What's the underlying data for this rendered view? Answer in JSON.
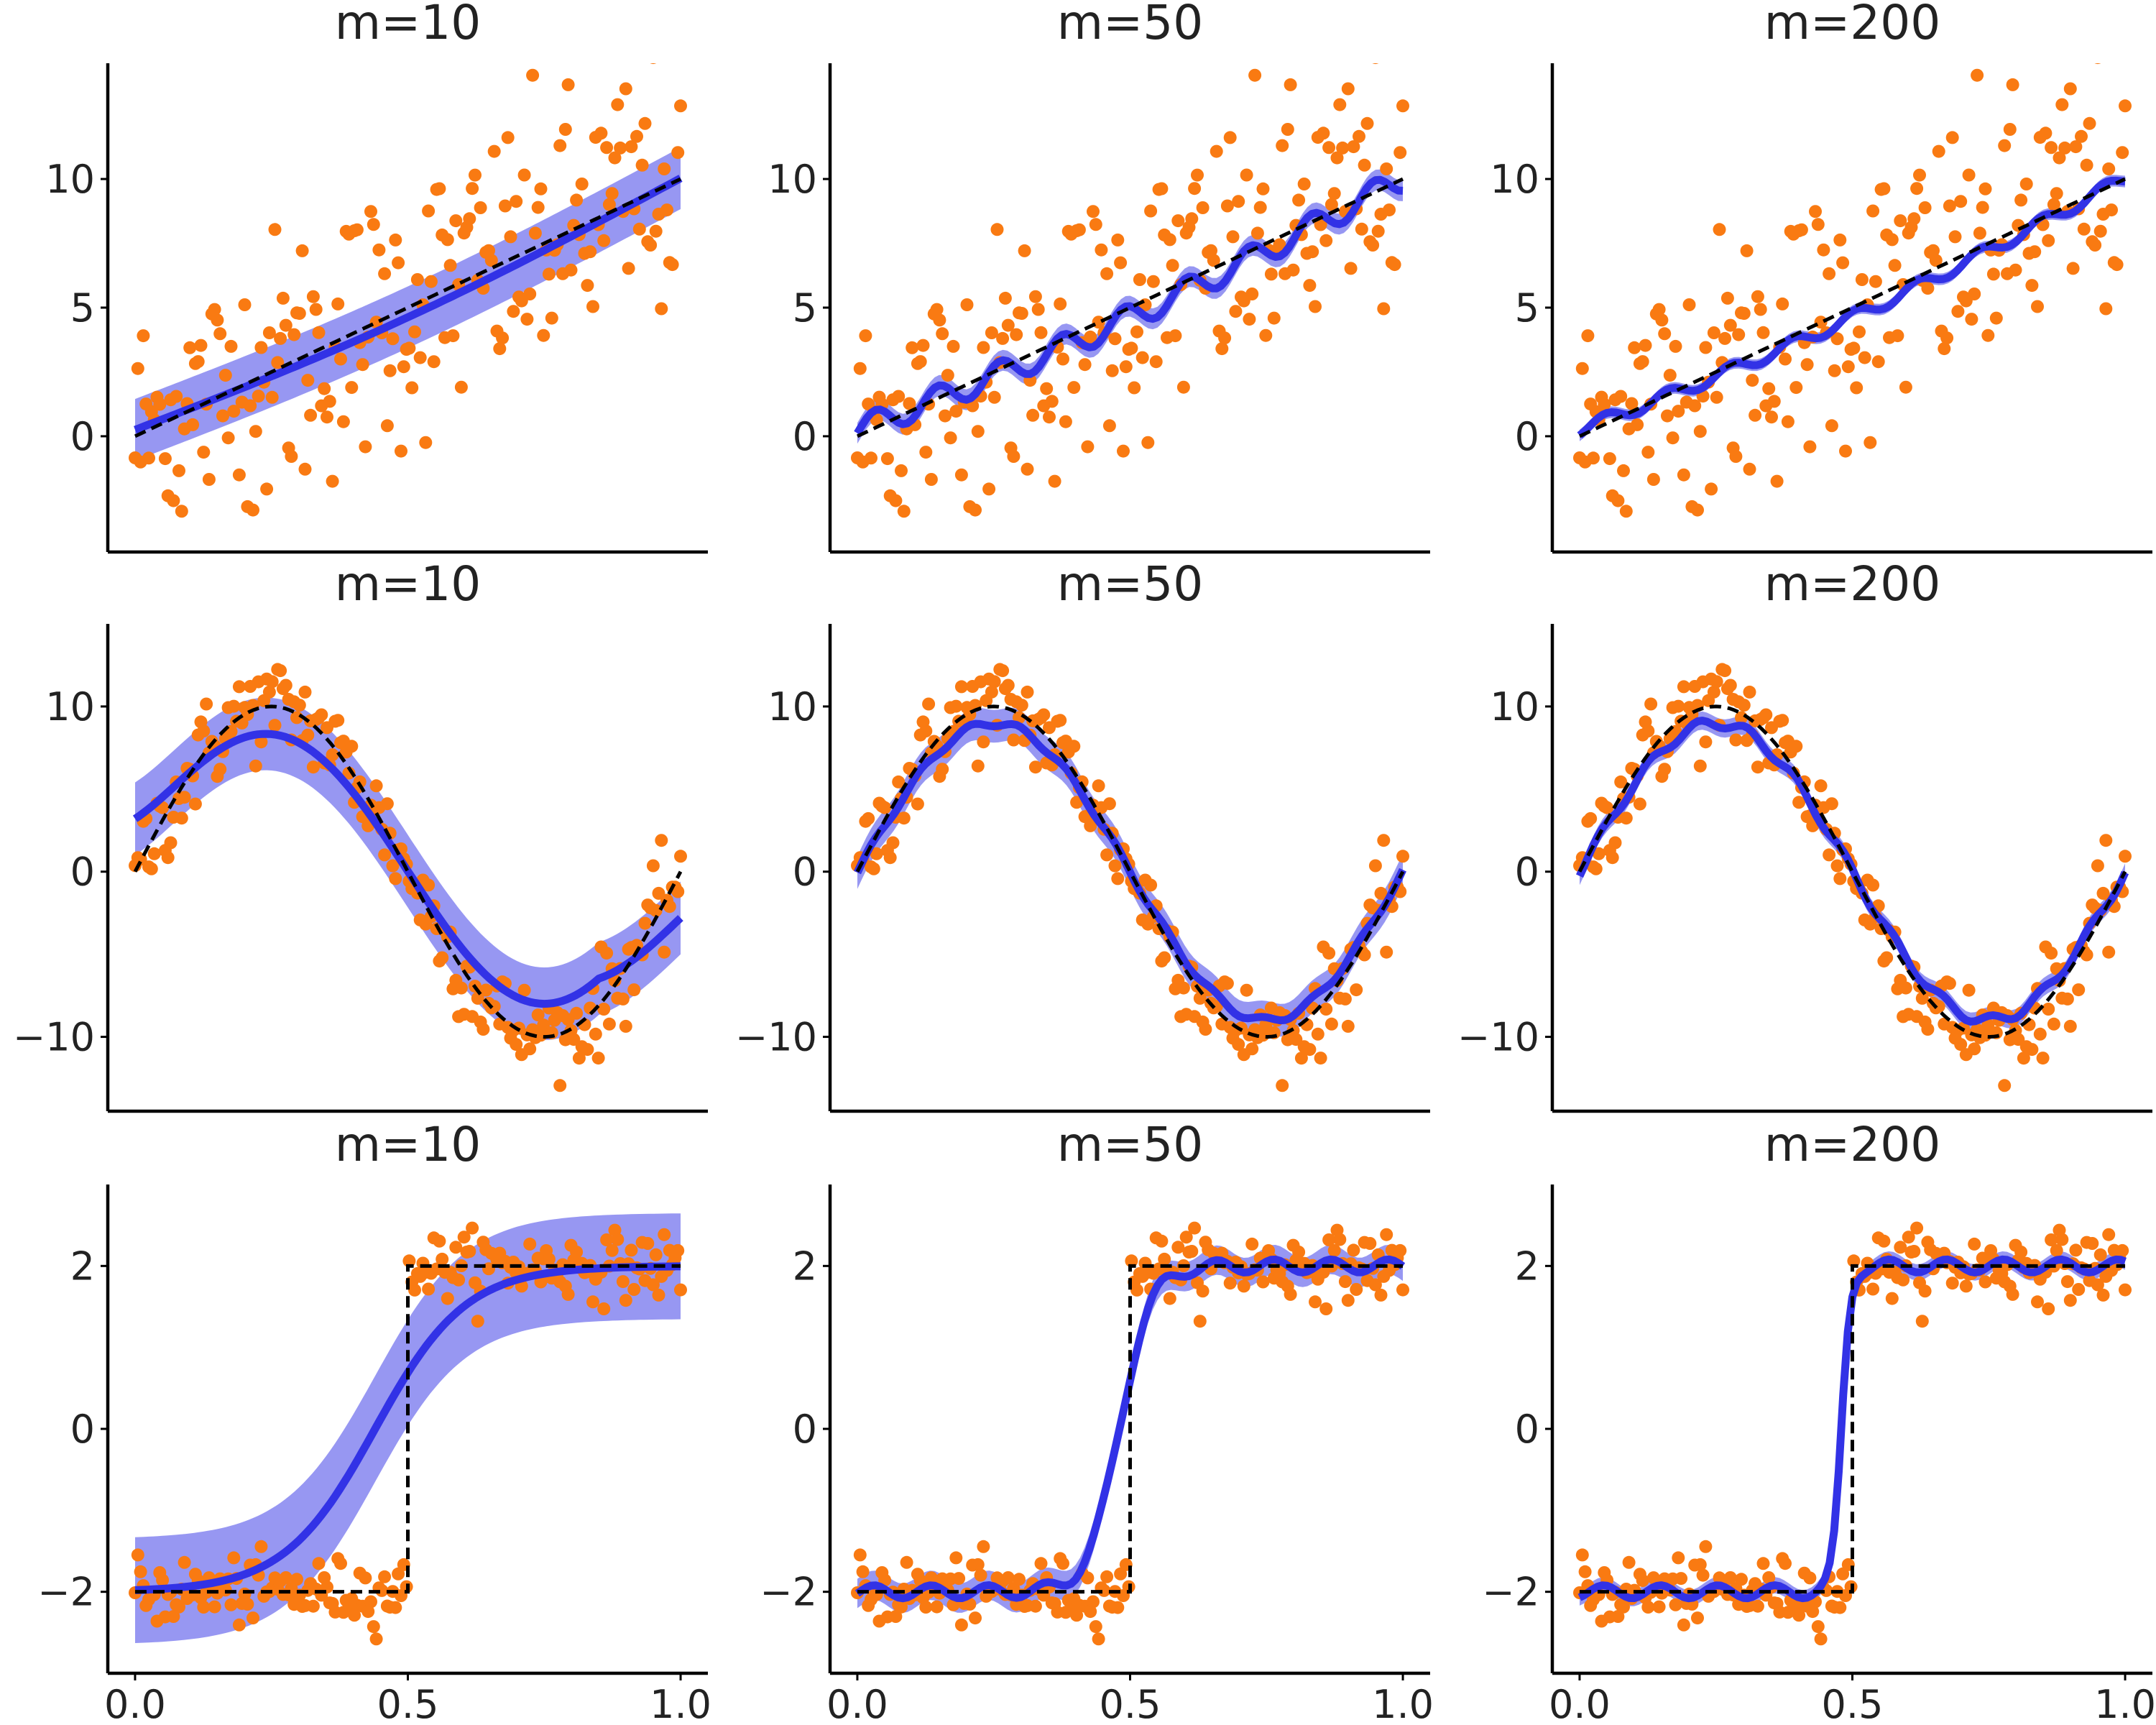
{
  "colors": {
    "points": "#f97a12",
    "mean_line": "#3232e6",
    "band": "#7474ee",
    "truth": "#000000"
  },
  "chart_data": [
    {
      "type": "scatter",
      "title": "m=10",
      "function": "linear",
      "m": 10,
      "xlim": [
        -0.05,
        1.05
      ],
      "ylim": [
        -4.5,
        14.5
      ],
      "yticks": [
        0,
        5,
        10
      ],
      "xticks": [],
      "xtick_labels": []
    },
    {
      "type": "scatter",
      "title": "m=50",
      "function": "linear",
      "m": 50,
      "xlim": [
        -0.05,
        1.05
      ],
      "ylim": [
        -4.5,
        14.5
      ],
      "yticks": [
        0,
        5,
        10
      ],
      "xticks": [],
      "xtick_labels": []
    },
    {
      "type": "scatter",
      "title": "m=200",
      "function": "linear",
      "m": 200,
      "xlim": [
        -0.05,
        1.05
      ],
      "ylim": [
        -4.5,
        14.5
      ],
      "yticks": [
        0,
        5,
        10
      ],
      "xticks": [],
      "xtick_labels": []
    },
    {
      "type": "scatter",
      "title": "m=10",
      "function": "sine",
      "m": 10,
      "xlim": [
        -0.05,
        1.05
      ],
      "ylim": [
        -14.5,
        15
      ],
      "yticks": [
        -10,
        0,
        10
      ],
      "ytick_labels": [
        "−10",
        "0",
        "10"
      ],
      "xticks": [],
      "xtick_labels": []
    },
    {
      "type": "scatter",
      "title": "m=50",
      "function": "sine",
      "m": 50,
      "xlim": [
        -0.05,
        1.05
      ],
      "ylim": [
        -14.5,
        15
      ],
      "yticks": [
        -10,
        0,
        10
      ],
      "ytick_labels": [
        "−10",
        "0",
        "10"
      ],
      "xticks": [],
      "xtick_labels": []
    },
    {
      "type": "scatter",
      "title": "m=200",
      "function": "sine",
      "m": 200,
      "xlim": [
        -0.05,
        1.05
      ],
      "ylim": [
        -14.5,
        15
      ],
      "yticks": [
        -10,
        0,
        10
      ],
      "ytick_labels": [
        "−10",
        "0",
        "10"
      ],
      "xticks": [],
      "xtick_labels": []
    },
    {
      "type": "scatter",
      "title": "m=10",
      "function": "step",
      "m": 10,
      "xlim": [
        -0.05,
        1.05
      ],
      "ylim": [
        -3,
        3
      ],
      "yticks": [
        -2,
        0,
        2
      ],
      "ytick_labels": [
        "−2",
        "0",
        "2"
      ],
      "xticks": [
        0,
        0.5,
        1
      ],
      "xtick_labels": [
        "0.0",
        "0.5",
        "1.0"
      ]
    },
    {
      "type": "scatter",
      "title": "m=50",
      "function": "step",
      "m": 50,
      "xlim": [
        -0.05,
        1.05
      ],
      "ylim": [
        -3,
        3
      ],
      "yticks": [
        -2,
        0,
        2
      ],
      "ytick_labels": [
        "−2",
        "0",
        "2"
      ],
      "xticks": [
        0,
        0.5,
        1
      ],
      "xtick_labels": [
        "0.0",
        "0.5",
        "1.0"
      ]
    },
    {
      "type": "scatter",
      "title": "m=200",
      "function": "step",
      "m": 200,
      "xlim": [
        -0.05,
        1.05
      ],
      "ylim": [
        -3,
        3
      ],
      "yticks": [
        -2,
        0,
        2
      ],
      "ytick_labels": [
        "−2",
        "0",
        "2"
      ],
      "xticks": [
        0,
        0.5,
        1
      ],
      "xtick_labels": [
        "0.0",
        "0.5",
        "1.0"
      ]
    }
  ]
}
